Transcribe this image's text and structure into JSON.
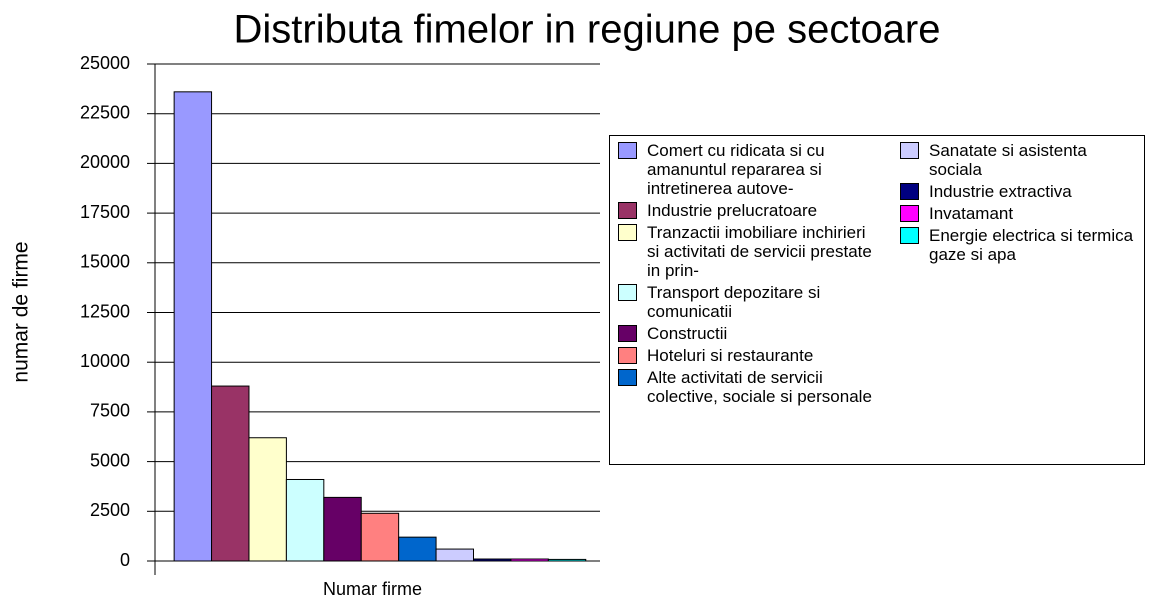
{
  "chart_data": {
    "type": "bar",
    "title": "Distributa fimelor in regiune pe sectoare",
    "ylabel": "numar de firme",
    "categories": [
      "Numar firme"
    ],
    "series": [
      {
        "name": "Comert cu ridicata si cu amanuntul repararea si intretinerea autove-",
        "color": "#9999ff",
        "values": [
          23600
        ]
      },
      {
        "name": "Industrie prelucratoare",
        "color": "#993366",
        "values": [
          8800
        ]
      },
      {
        "name": "Tranzactii imobiliare inchirieri si activitati de servicii prestate in prin-",
        "color": "#ffffcc",
        "values": [
          6200
        ]
      },
      {
        "name": "Transport depozitare si comunicatii",
        "color": "#ccffff",
        "values": [
          4100
        ]
      },
      {
        "name": "Constructii",
        "color": "#660066",
        "values": [
          3200
        ]
      },
      {
        "name": "Hoteluri si restaurante",
        "color": "#ff8080",
        "values": [
          2400
        ]
      },
      {
        "name": "Alte activitati de servicii colective, sociale si personale",
        "color": "#0066cc",
        "values": [
          1200
        ]
      },
      {
        "name": "Sanatate si asistenta sociala",
        "color": "#ccccff",
        "values": [
          600
        ]
      },
      {
        "name": "Industrie extractiva",
        "color": "#000080",
        "values": [
          100
        ]
      },
      {
        "name": "Invatamant",
        "color": "#ff00ff",
        "values": [
          100
        ]
      },
      {
        "name": "Energie electrica si termica gaze si apa",
        "color": "#00ffff",
        "values": [
          80
        ]
      }
    ],
    "ylim": [
      0,
      25000
    ],
    "yticks": [
      0,
      2500,
      5000,
      7500,
      10000,
      12500,
      15000,
      17500,
      20000,
      22500,
      25000
    ],
    "grid": true
  }
}
